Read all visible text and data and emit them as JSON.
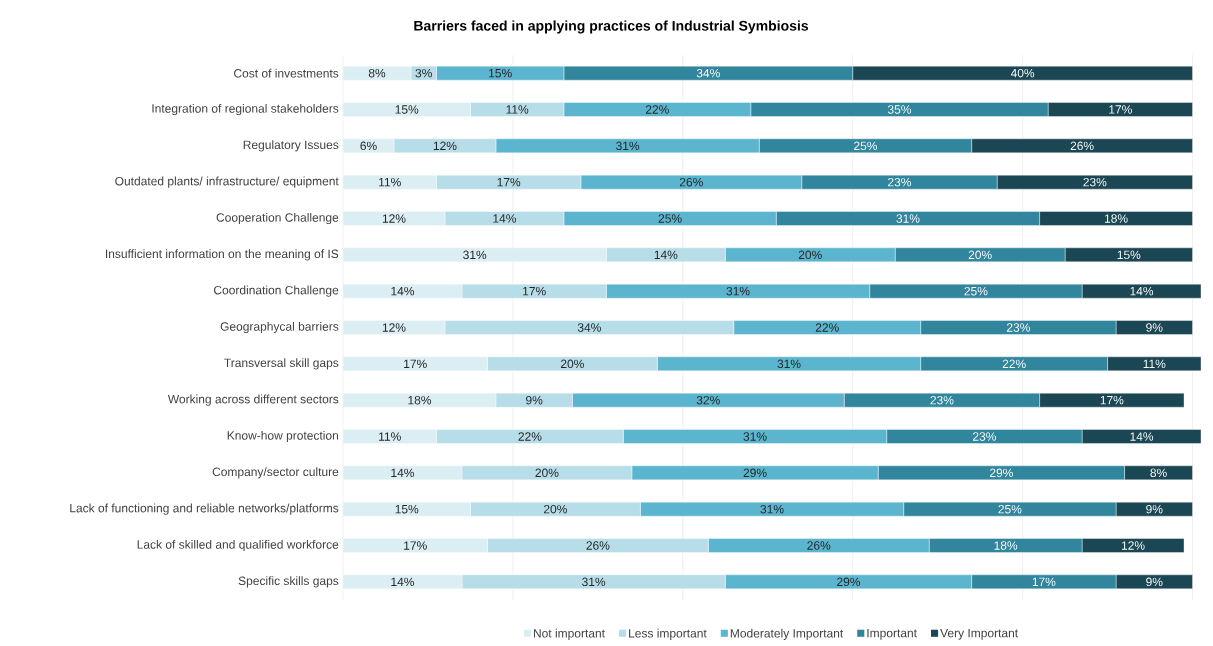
{
  "chart_data": {
    "type": "bar",
    "orientation": "horizontal",
    "stacked": true,
    "title": "Barriers faced in applying practices of Industrial Symbiosis",
    "categories": [
      "Cost of investments",
      "Integration of regional stakeholders",
      "Regulatory Issues",
      "Outdated plants/ infrastructure/ equipment",
      "Cooperation Challenge",
      "Insufficient information on the meaning of IS",
      "Coordination Challenge",
      "Geographycal barriers",
      "Transversal skill gaps",
      "Working across different sectors",
      "Know-how protection",
      "Company/sector culture",
      "Lack of functioning and reliable networks/platforms",
      "Lack of skilled and qualified workforce",
      "Specific skills gaps"
    ],
    "series": [
      {
        "name": "Not important",
        "color": "#daeef3",
        "values": [
          8,
          15,
          6,
          11,
          12,
          31,
          14,
          12,
          17,
          18,
          11,
          14,
          15,
          17,
          14
        ],
        "value_labels": [
          "8%",
          "15%",
          "6%",
          "11%",
          "12%",
          "31%",
          "14%",
          "12%",
          "17%",
          "18%",
          "11%",
          "14%",
          "15%",
          "17%",
          "14%"
        ]
      },
      {
        "name": "Less important",
        "color": "#b7dde8",
        "values": [
          3,
          11,
          12,
          17,
          14,
          14,
          17,
          34,
          20,
          9,
          22,
          20,
          20,
          26,
          31
        ],
        "value_labels": [
          "3%",
          "11%",
          "12%",
          "17%",
          "14%",
          "14%",
          "17%",
          "34%",
          "20%",
          "9%",
          "22%",
          "20%",
          "20%",
          "26%",
          "31%"
        ]
      },
      {
        "name": "Moderately Important",
        "color": "#5bb5cf",
        "values": [
          15,
          22,
          31,
          26,
          25,
          20,
          31,
          22,
          31,
          32,
          31,
          29,
          31,
          26,
          29
        ],
        "value_labels": [
          "15%",
          "22%",
          "31%",
          "26%",
          "25%",
          "20%",
          "31%",
          "22%",
          "31%",
          "32%",
          "31%",
          "29%",
          "31%",
          "26%",
          "29%"
        ]
      },
      {
        "name": "Important",
        "color": "#31859c",
        "values": [
          34,
          35,
          25,
          23,
          31,
          20,
          25,
          23,
          22,
          23,
          23,
          29,
          25,
          18,
          17
        ],
        "value_labels": [
          "34%",
          "35%",
          "25%",
          "23%",
          "31%",
          "20%",
          "25%",
          "23%",
          "22%",
          "23%",
          "23%",
          "29%",
          "25%",
          "18%",
          "17%"
        ]
      },
      {
        "name": "Very Important",
        "color": "#1b4653",
        "values": [
          40,
          17,
          26,
          23,
          18,
          15,
          14,
          9,
          11,
          17,
          14,
          8,
          9,
          12,
          9
        ],
        "value_labels": [
          "40%",
          "17%",
          "26%",
          "23%",
          "18%",
          "15%",
          "14%",
          "9%",
          "11%",
          "17%",
          "14%",
          "8%",
          "9%",
          "12%",
          "9%"
        ]
      }
    ],
    "xlim": [
      0,
      101
    ],
    "xticks": [
      {
        "value": 0,
        "label": null
      },
      {
        "value": 20,
        "label": null
      },
      {
        "value": 40,
        "label": null
      },
      {
        "value": 60,
        "label": null
      },
      {
        "value": 80,
        "label": null
      },
      {
        "value": 100,
        "label": null
      }
    ],
    "tick_labels": "y",
    "grid": "x",
    "legend": "bottom"
  }
}
